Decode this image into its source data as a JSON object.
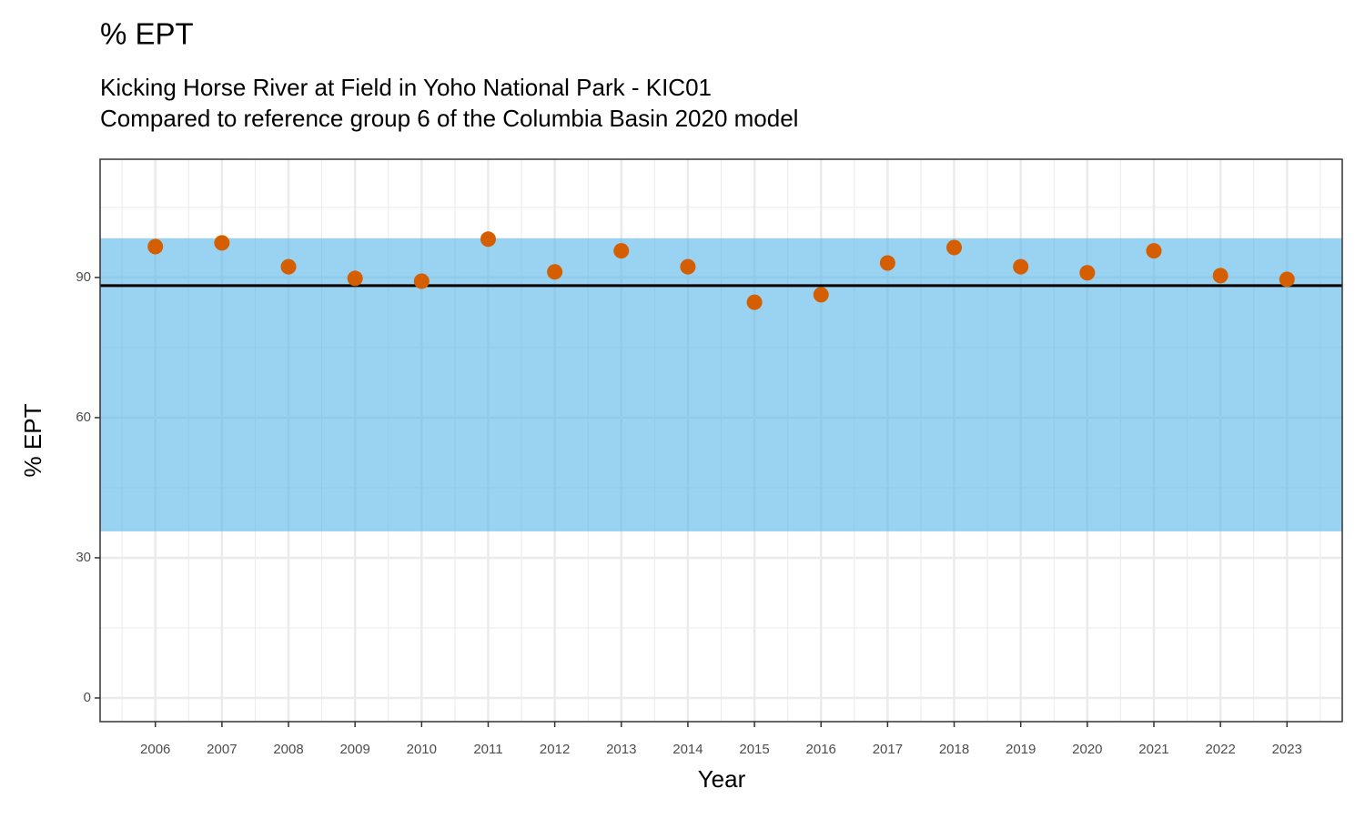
{
  "chart_data": {
    "type": "scatter",
    "title": "% EPT",
    "subtitle": [
      "Kicking Horse River at Field in Yoho National Park - KIC01",
      "Compared to reference group 6 of the Columbia Basin 2020 model"
    ],
    "x_label": "Year",
    "y_label": "% EPT",
    "x": [
      2006,
      2007,
      2008,
      2009,
      2010,
      2011,
      2012,
      2013,
      2014,
      2015,
      2016,
      2017,
      2018,
      2019,
      2020,
      2021,
      2022,
      2023
    ],
    "values": [
      96.6,
      97.4,
      92.3,
      89.8,
      89.2,
      98.2,
      91.2,
      95.7,
      92.3,
      84.7,
      86.3,
      93.1,
      96.4,
      92.3,
      91.0,
      95.7,
      90.4,
      89.6
    ],
    "color": "#d55e00",
    "reference_band": {
      "lower": 35.65,
      "upper": 98.4,
      "color": "#56b4e9"
    },
    "reference_line": 88.25,
    "xlim": [
      2005.17,
      2023.83
    ],
    "xticks": [
      2006,
      2007,
      2008,
      2009,
      2010,
      2011,
      2012,
      2013,
      2014,
      2015,
      2016,
      2017,
      2018,
      2019,
      2020,
      2021,
      2022,
      2023
    ],
    "ylim": [
      -5.07,
      115.3
    ],
    "yticks": [
      0,
      30,
      60,
      90
    ],
    "grid": true
  }
}
